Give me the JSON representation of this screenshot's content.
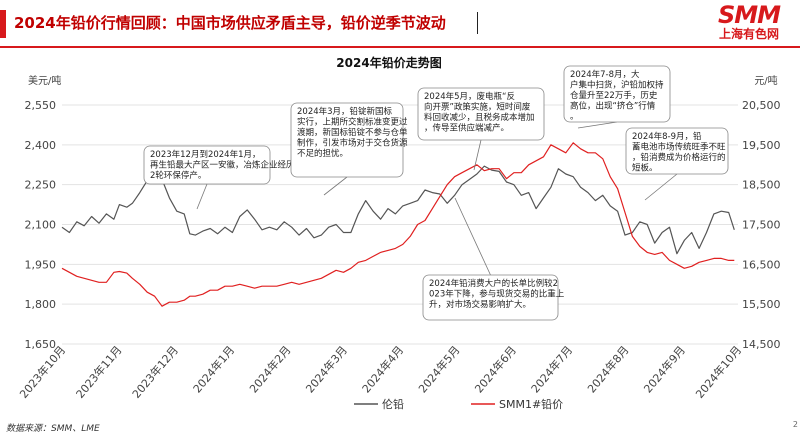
{
  "header": {
    "title": "2024年铅价行情回顾：中国市场供应矛盾主导，铅价逆季节波动",
    "logo_mark": "SMM",
    "logo_sub": "上海有色网"
  },
  "footer": {
    "source": "数据来源：SMM、LME",
    "page": "2"
  },
  "colors": {
    "accent": "#d7191c",
    "lme": "#555555",
    "smm": "#e02020"
  },
  "chart_data": {
    "type": "line",
    "title": "2024年铅价走势图",
    "ylabel_left": "美元/吨",
    "ylabel_right": "元/吨",
    "yticks_left": [
      "2,550",
      "2,400",
      "2,250",
      "2,100",
      "1,950",
      "1,800",
      "1,650"
    ],
    "yticks_right": [
      "20,500",
      "19,500",
      "18,500",
      "17,500",
      "16,500",
      "15,500",
      "14,500"
    ],
    "ylim_left": [
      1650,
      2550
    ],
    "ylim_right": [
      14500,
      20500
    ],
    "xlim": [
      0,
      365
    ],
    "xticks": [
      "2023年10月",
      "2023年11月",
      "2023年12月",
      "2024年1月",
      "2024年2月",
      "2024年3月",
      "2024年4月",
      "2024年5月",
      "2024年6月",
      "2024年7月",
      "2024年8月",
      "2024年9月",
      "2024年10月"
    ],
    "grid": true,
    "legend_position": "bottom",
    "series": [
      {
        "name": "伦铅",
        "axis": "left",
        "color": "#555555",
        "x": [
          0,
          4,
          8,
          12,
          16,
          20,
          24,
          28,
          31,
          35,
          38,
          42,
          46,
          50,
          54,
          58,
          62,
          66,
          69,
          72,
          76,
          80,
          84,
          88,
          92,
          96,
          100,
          104,
          108,
          112,
          116,
          120,
          124,
          128,
          132,
          136,
          140,
          144,
          148,
          152,
          156,
          160,
          164,
          168,
          172,
          176,
          180,
          184,
          188,
          192,
          196,
          200,
          204,
          208,
          212,
          216,
          220,
          224,
          228,
          232,
          236,
          240,
          244,
          248,
          252,
          256,
          260,
          264,
          268,
          272,
          276,
          280,
          284,
          288,
          292,
          296,
          300,
          304,
          308,
          312,
          316,
          320,
          324,
          328,
          332,
          336,
          340,
          344,
          348,
          352,
          356,
          360,
          363
        ],
        "y": [
          2090,
          2070,
          2110,
          2095,
          2130,
          2105,
          2140,
          2120,
          2175,
          2165,
          2180,
          2220,
          2265,
          2290,
          2270,
          2200,
          2150,
          2140,
          2065,
          2060,
          2075,
          2085,
          2065,
          2090,
          2070,
          2130,
          2155,
          2120,
          2080,
          2090,
          2080,
          2110,
          2090,
          2060,
          2085,
          2050,
          2060,
          2090,
          2100,
          2070,
          2070,
          2140,
          2190,
          2150,
          2120,
          2160,
          2140,
          2170,
          2180,
          2190,
          2230,
          2220,
          2215,
          2180,
          2210,
          2250,
          2270,
          2290,
          2320,
          2305,
          2300,
          2260,
          2250,
          2210,
          2220,
          2160,
          2200,
          2240,
          2310,
          2290,
          2280,
          2240,
          2220,
          2190,
          2210,
          2170,
          2150,
          2060,
          2070,
          2110,
          2100,
          2030,
          2070,
          2090,
          1990,
          2040,
          2070,
          2010,
          2070,
          2140,
          2150,
          2145,
          2080
        ]
      },
      {
        "name": "SMM1#铅价",
        "axis": "right",
        "color": "#e02020",
        "x": [
          0,
          4,
          8,
          12,
          16,
          20,
          24,
          28,
          31,
          35,
          38,
          42,
          46,
          50,
          54,
          58,
          62,
          66,
          69,
          72,
          76,
          80,
          84,
          88,
          92,
          96,
          100,
          104,
          108,
          112,
          116,
          120,
          124,
          128,
          132,
          136,
          140,
          144,
          148,
          152,
          156,
          160,
          164,
          168,
          172,
          176,
          180,
          184,
          188,
          192,
          196,
          200,
          204,
          208,
          212,
          216,
          220,
          224,
          228,
          232,
          236,
          240,
          244,
          248,
          252,
          256,
          260,
          264,
          268,
          272,
          276,
          280,
          284,
          288,
          292,
          296,
          300,
          304,
          308,
          312,
          316,
          320,
          324,
          328,
          332,
          336,
          340,
          344,
          348,
          352,
          356,
          360,
          363
        ],
        "y": [
          16400,
          16300,
          16200,
          16150,
          16100,
          16050,
          16050,
          16300,
          16320,
          16280,
          16150,
          16000,
          15800,
          15700,
          15450,
          15550,
          15550,
          15600,
          15700,
          15700,
          15750,
          15850,
          15850,
          15950,
          15950,
          16000,
          15950,
          15900,
          15950,
          15950,
          15950,
          16000,
          16050,
          16000,
          16050,
          16100,
          16150,
          16250,
          16350,
          16300,
          16400,
          16550,
          16600,
          16700,
          16800,
          16850,
          16900,
          17000,
          17200,
          17500,
          17600,
          17900,
          18200,
          18500,
          18700,
          18800,
          18900,
          19000,
          18850,
          18900,
          18900,
          18650,
          18800,
          18800,
          19000,
          19100,
          19200,
          19500,
          19400,
          19300,
          19550,
          19400,
          19300,
          19300,
          19150,
          18700,
          18400,
          17800,
          17200,
          16950,
          16800,
          16750,
          16800,
          16600,
          16500,
          16400,
          16450,
          16550,
          16600,
          16650,
          16650,
          16600,
          16600
        ]
      }
    ],
    "annotations": [
      "2023年12月到2024年1月，再生铅最大产区一安徽，冶炼企业经历2轮环保停产。",
      "2024年3月，铅锭新国标实行，上期所交割标准变更过渡期，新国标铅锭不参与仓单制作，引发市场对于交仓货源不足的担忧。",
      "2024年5月，废电瓶“反向开票”政策实施，短时间废料回收减少，且税务成本增加，传导至供应端减产。",
      "2024年7-8月，大户集中扫货，沪铅加权持仓量升至22万手，历史高位，出现“挤仓”行情。",
      "2024年8-9月，铅蓄电池市场传统旺季不旺，铅消费成为价格运行的短板。",
      "2024年铅消费大户的长单比例较2023年下降，参与现货交易的比重上升，对市场交易影响扩大。"
    ]
  }
}
